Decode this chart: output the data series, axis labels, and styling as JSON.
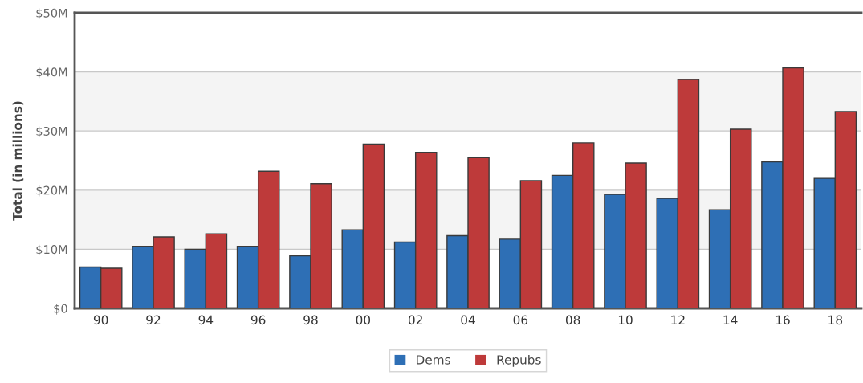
{
  "chart_data": {
    "type": "bar",
    "ylabel": "Total (in millions)",
    "categories": [
      "90",
      "92",
      "94",
      "96",
      "98",
      "00",
      "02",
      "04",
      "06",
      "08",
      "10",
      "12",
      "14",
      "16",
      "18"
    ],
    "series": [
      {
        "name": "Dems",
        "color": "#2e6fb5",
        "values": [
          7.0,
          10.5,
          10.0,
          10.5,
          8.9,
          13.3,
          11.2,
          12.3,
          11.7,
          22.5,
          19.3,
          18.6,
          16.7,
          24.8,
          22.0
        ]
      },
      {
        "name": "Repubs",
        "color": "#be3a3a",
        "values": [
          6.8,
          12.1,
          12.6,
          23.2,
          21.1,
          27.8,
          26.4,
          25.5,
          21.6,
          28.0,
          24.6,
          38.7,
          30.3,
          40.7,
          33.3
        ]
      }
    ],
    "ylim": [
      0,
      50
    ],
    "yticks": [
      {
        "value": 0,
        "label": "$0"
      },
      {
        "value": 10,
        "label": "$10M"
      },
      {
        "value": 20,
        "label": "$20M"
      },
      {
        "value": 30,
        "label": "$30M"
      },
      {
        "value": 40,
        "label": "$40M"
      },
      {
        "value": 50,
        "label": "$50M"
      }
    ],
    "bands": [
      {
        "axis": "y",
        "from": 10,
        "to": 20,
        "color": "#f4f4f4"
      },
      {
        "axis": "y",
        "from": 30,
        "to": 40,
        "color": "#f4f4f4"
      }
    ],
    "grid": "y",
    "legend": "bottom"
  }
}
